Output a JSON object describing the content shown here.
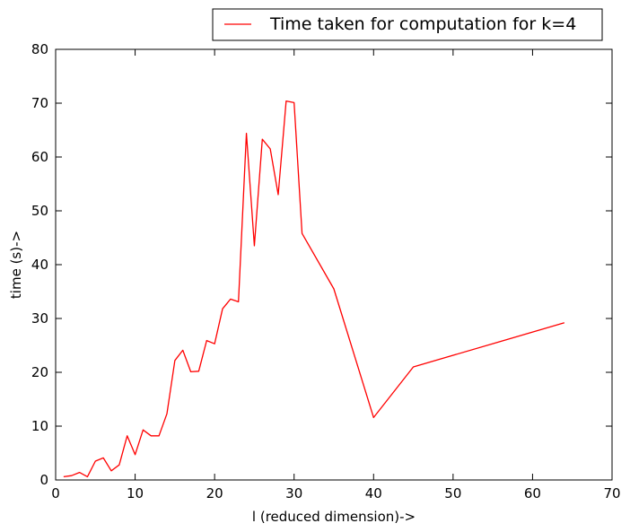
{
  "chart_data": {
    "type": "line",
    "title": "",
    "xlabel": "l (reduced dimension)->",
    "ylabel": "time (s)->",
    "xlim": [
      0,
      70
    ],
    "ylim": [
      0,
      80
    ],
    "xticks": [
      0,
      10,
      20,
      30,
      40,
      50,
      60,
      70
    ],
    "yticks": [
      0,
      10,
      20,
      30,
      40,
      50,
      60,
      70,
      80
    ],
    "grid": false,
    "legend_position": "top-right, above plot",
    "series": [
      {
        "name": "Time taken for computation for k=4",
        "color": "#ff0000",
        "x": [
          1,
          2,
          3,
          4,
          5,
          6,
          7,
          8,
          9,
          10,
          11,
          12,
          13,
          14,
          15,
          16,
          17,
          18,
          19,
          20,
          21,
          22,
          23,
          24,
          25,
          26,
          27,
          28,
          29,
          30,
          31,
          35,
          40,
          45,
          64
        ],
        "y": [
          0.6,
          0.8,
          1.4,
          0.6,
          3.5,
          4.1,
          1.7,
          2.8,
          8.2,
          4.7,
          9.3,
          8.2,
          8.2,
          12.3,
          22.2,
          24.1,
          20.1,
          20.2,
          25.9,
          25.3,
          31.8,
          33.6,
          33.1,
          64.4,
          43.5,
          63.3,
          61.5,
          53.0,
          70.4,
          70.1,
          45.8,
          35.5,
          11.6,
          21.0,
          29.2
        ]
      }
    ]
  }
}
